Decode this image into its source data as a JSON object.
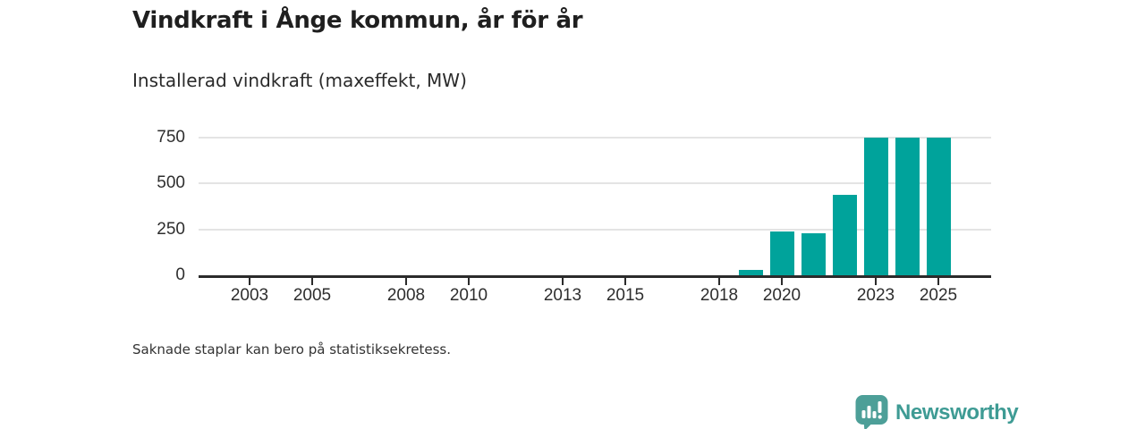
{
  "header": {
    "title": "Vindkraft i Ånge kommun, år för år",
    "subtitle": "Installerad vindkraft (maxeffekt, MW)"
  },
  "chart_data": {
    "type": "bar",
    "title": "Vindkraft i Ånge kommun, år för år",
    "subtitle": "Installerad vindkraft (maxeffekt, MW)",
    "xlabel": "",
    "ylabel": "Installerad vindkraft (maxeffekt, MW)",
    "categories": [
      2002,
      2003,
      2004,
      2005,
      2006,
      2007,
      2008,
      2009,
      2010,
      2011,
      2012,
      2013,
      2014,
      2015,
      2016,
      2017,
      2018,
      2019,
      2020,
      2021,
      2022,
      2023,
      2024,
      2025
    ],
    "values": [
      null,
      null,
      null,
      null,
      null,
      null,
      null,
      null,
      null,
      null,
      null,
      null,
      null,
      null,
      null,
      null,
      null,
      30,
      240,
      230,
      440,
      750,
      750,
      750
    ],
    "x_tick_labels": [
      "2003",
      "2005",
      "2008",
      "2010",
      "2013",
      "2015",
      "2018",
      "2020",
      "2023",
      "2025"
    ],
    "y_ticks": [
      0,
      250,
      500,
      750
    ],
    "ylim": [
      0,
      750
    ],
    "grid": "horizontal",
    "legend_position": "none",
    "bar_color": "#00a39b",
    "note": "Saknade staplar kan bero på statistiksekretess."
  },
  "footer": {
    "note": "Saknade staplar kan bero på statistiksekretess.",
    "brand": "Newsworthy"
  },
  "colors": {
    "bar": "#00a39b",
    "axis": "#2b2b2b",
    "grid": "#e4e4e4",
    "title_text": "#1f1f1f",
    "tick_text": "#2e2e2e",
    "brand_text": "#3e9b94",
    "brand_badge": "#4d9f98"
  }
}
